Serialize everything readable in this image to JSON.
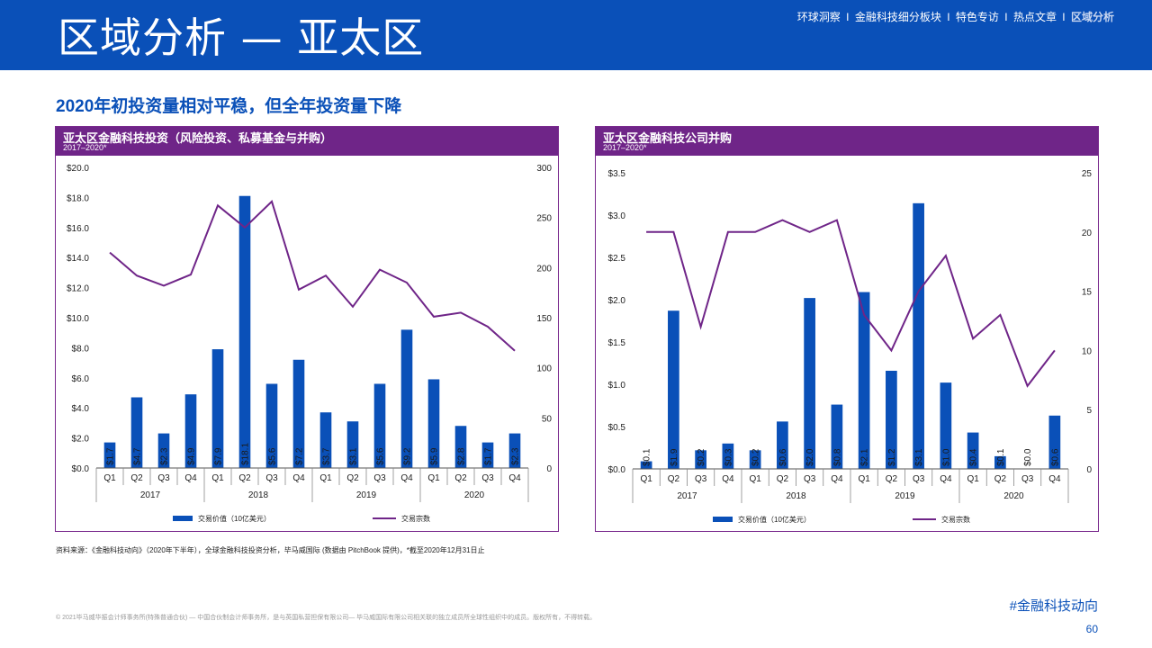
{
  "header": {
    "title": "区域分析 — 亚太区",
    "nav": [
      "环球洞察",
      "金融科技细分板块",
      "特色专访",
      "热点文章",
      "区域分析"
    ],
    "nav_separator": "I",
    "active_nav": "区域分析",
    "bg_color": "#0a50b8"
  },
  "subtitle": "2020年初投资量相对平稳，但全年投资量下降",
  "charts": {
    "left": {
      "title": "亚太区金融科技投资（风险投资、私募基金与并购）",
      "subtitle": "2017–2020*",
      "legend_bar": "交易价值（10亿美元）",
      "legend_line": "交易宗数"
    },
    "right": {
      "title": "亚太区金融科技公司并购",
      "subtitle": "2017–2020*",
      "legend_bar": "交易价值（10亿美元）",
      "legend_line": "交易宗数"
    }
  },
  "chart_data": [
    {
      "type": "bar",
      "title": "亚太区金融科技投资（风险投资、私募基金与并购）",
      "subtitle": "2017–2020*",
      "categories": [
        "Q1",
        "Q2",
        "Q3",
        "Q4",
        "Q1",
        "Q2",
        "Q3",
        "Q4",
        "Q1",
        "Q2",
        "Q3",
        "Q4",
        "Q1",
        "Q2",
        "Q3",
        "Q4"
      ],
      "years": [
        "2017",
        "2018",
        "2019",
        "2020"
      ],
      "series": [
        {
          "name": "交易价值（10亿美元）",
          "type": "bar",
          "axis": "left",
          "values": [
            1.7,
            4.7,
            2.3,
            4.9,
            7.9,
            18.1,
            5.6,
            7.2,
            3.7,
            3.1,
            5.6,
            9.2,
            5.9,
            2.8,
            1.7,
            2.3
          ],
          "labels": [
            "$1.7",
            "$4.7",
            "$2.3",
            "$4.9",
            "$7.9",
            "$18.1",
            "$5.6",
            "$7.2",
            "$3.7",
            "$3.1",
            "$5.6",
            "$9.2",
            "$5.9",
            "$2.8",
            "$1.7",
            "$2.3"
          ]
        },
        {
          "name": "交易宗数",
          "type": "line",
          "axis": "right",
          "values": [
            215,
            192,
            182,
            193,
            262,
            240,
            266,
            178,
            192,
            161,
            198,
            185,
            151,
            155,
            141,
            117
          ]
        }
      ],
      "ylim_left": [
        0,
        20
      ],
      "yticks_left": [
        "$0.0",
        "$2.0",
        "$4.0",
        "$6.0",
        "$8.0",
        "$10.0",
        "$12.0",
        "$14.0",
        "$16.0",
        "$18.0",
        "$20.0"
      ],
      "ylim_right": [
        0,
        300
      ],
      "yticks_right": [
        "0",
        "50",
        "100",
        "150",
        "200",
        "250",
        "300"
      ],
      "bar_color": "#0a50b8",
      "line_color": "#6f2588",
      "legend": "bottom"
    },
    {
      "type": "bar",
      "title": "亚太区金融科技公司并购",
      "subtitle": "2017–2020*",
      "categories": [
        "Q1",
        "Q2",
        "Q3",
        "Q4",
        "Q1",
        "Q2",
        "Q3",
        "Q4",
        "Q1",
        "Q2",
        "Q3",
        "Q4",
        "Q1",
        "Q2",
        "Q3",
        "Q4"
      ],
      "years": [
        "2017",
        "2018",
        "2019",
        "2020"
      ],
      "series": [
        {
          "name": "交易价值（10亿美元）",
          "type": "bar",
          "axis": "left",
          "values": [
            0.09,
            1.87,
            0.22,
            0.3,
            0.22,
            0.56,
            2.02,
            0.76,
            2.09,
            1.16,
            3.14,
            1.02,
            0.43,
            0.15,
            0.0,
            0.63
          ],
          "labels": [
            "$0.1",
            "$1.9",
            "$0.2",
            "$0.3",
            "$0.2",
            "$0.6",
            "$2.0",
            "$0.8",
            "$2.1",
            "$1.2",
            "$3.1",
            "$1.0",
            "$0.4",
            "$0.1",
            "$0.0",
            "$0.6"
          ]
        },
        {
          "name": "交易宗数",
          "type": "line",
          "axis": "right",
          "values": [
            20,
            20,
            12,
            20,
            20,
            21,
            20,
            21,
            13,
            10,
            15,
            18,
            11,
            13,
            7,
            10
          ]
        }
      ],
      "ylim_left": [
        0,
        3.5
      ],
      "yticks_left": [
        "$0.0",
        "$0.5",
        "$1.0",
        "$1.5",
        "$2.0",
        "$2.5",
        "$3.0",
        "$3.5"
      ],
      "ylim_right": [
        0,
        25
      ],
      "yticks_right": [
        "0",
        "5",
        "10",
        "15",
        "20",
        "25"
      ],
      "bar_color": "#0a50b8",
      "line_color": "#6f2588",
      "legend": "bottom"
    }
  ],
  "footer": {
    "source": "资料来源：《金融科技动向》（2020年下半年），全球金融科技投资分析，毕马威国际 (数据由 PitchBook 提供)，*截至2020年12月31日止",
    "copyright": "© 2021毕马威华振会计师事务所(特殊普通合伙) — 中国合伙制会计师事务所，是与英国私营担保有限公司— 毕马威国际有限公司相关联的独立成员所全球性组织中的成员。版权所有，不得转载。",
    "hashtag": "#金融科技动向",
    "page_number": "60"
  }
}
